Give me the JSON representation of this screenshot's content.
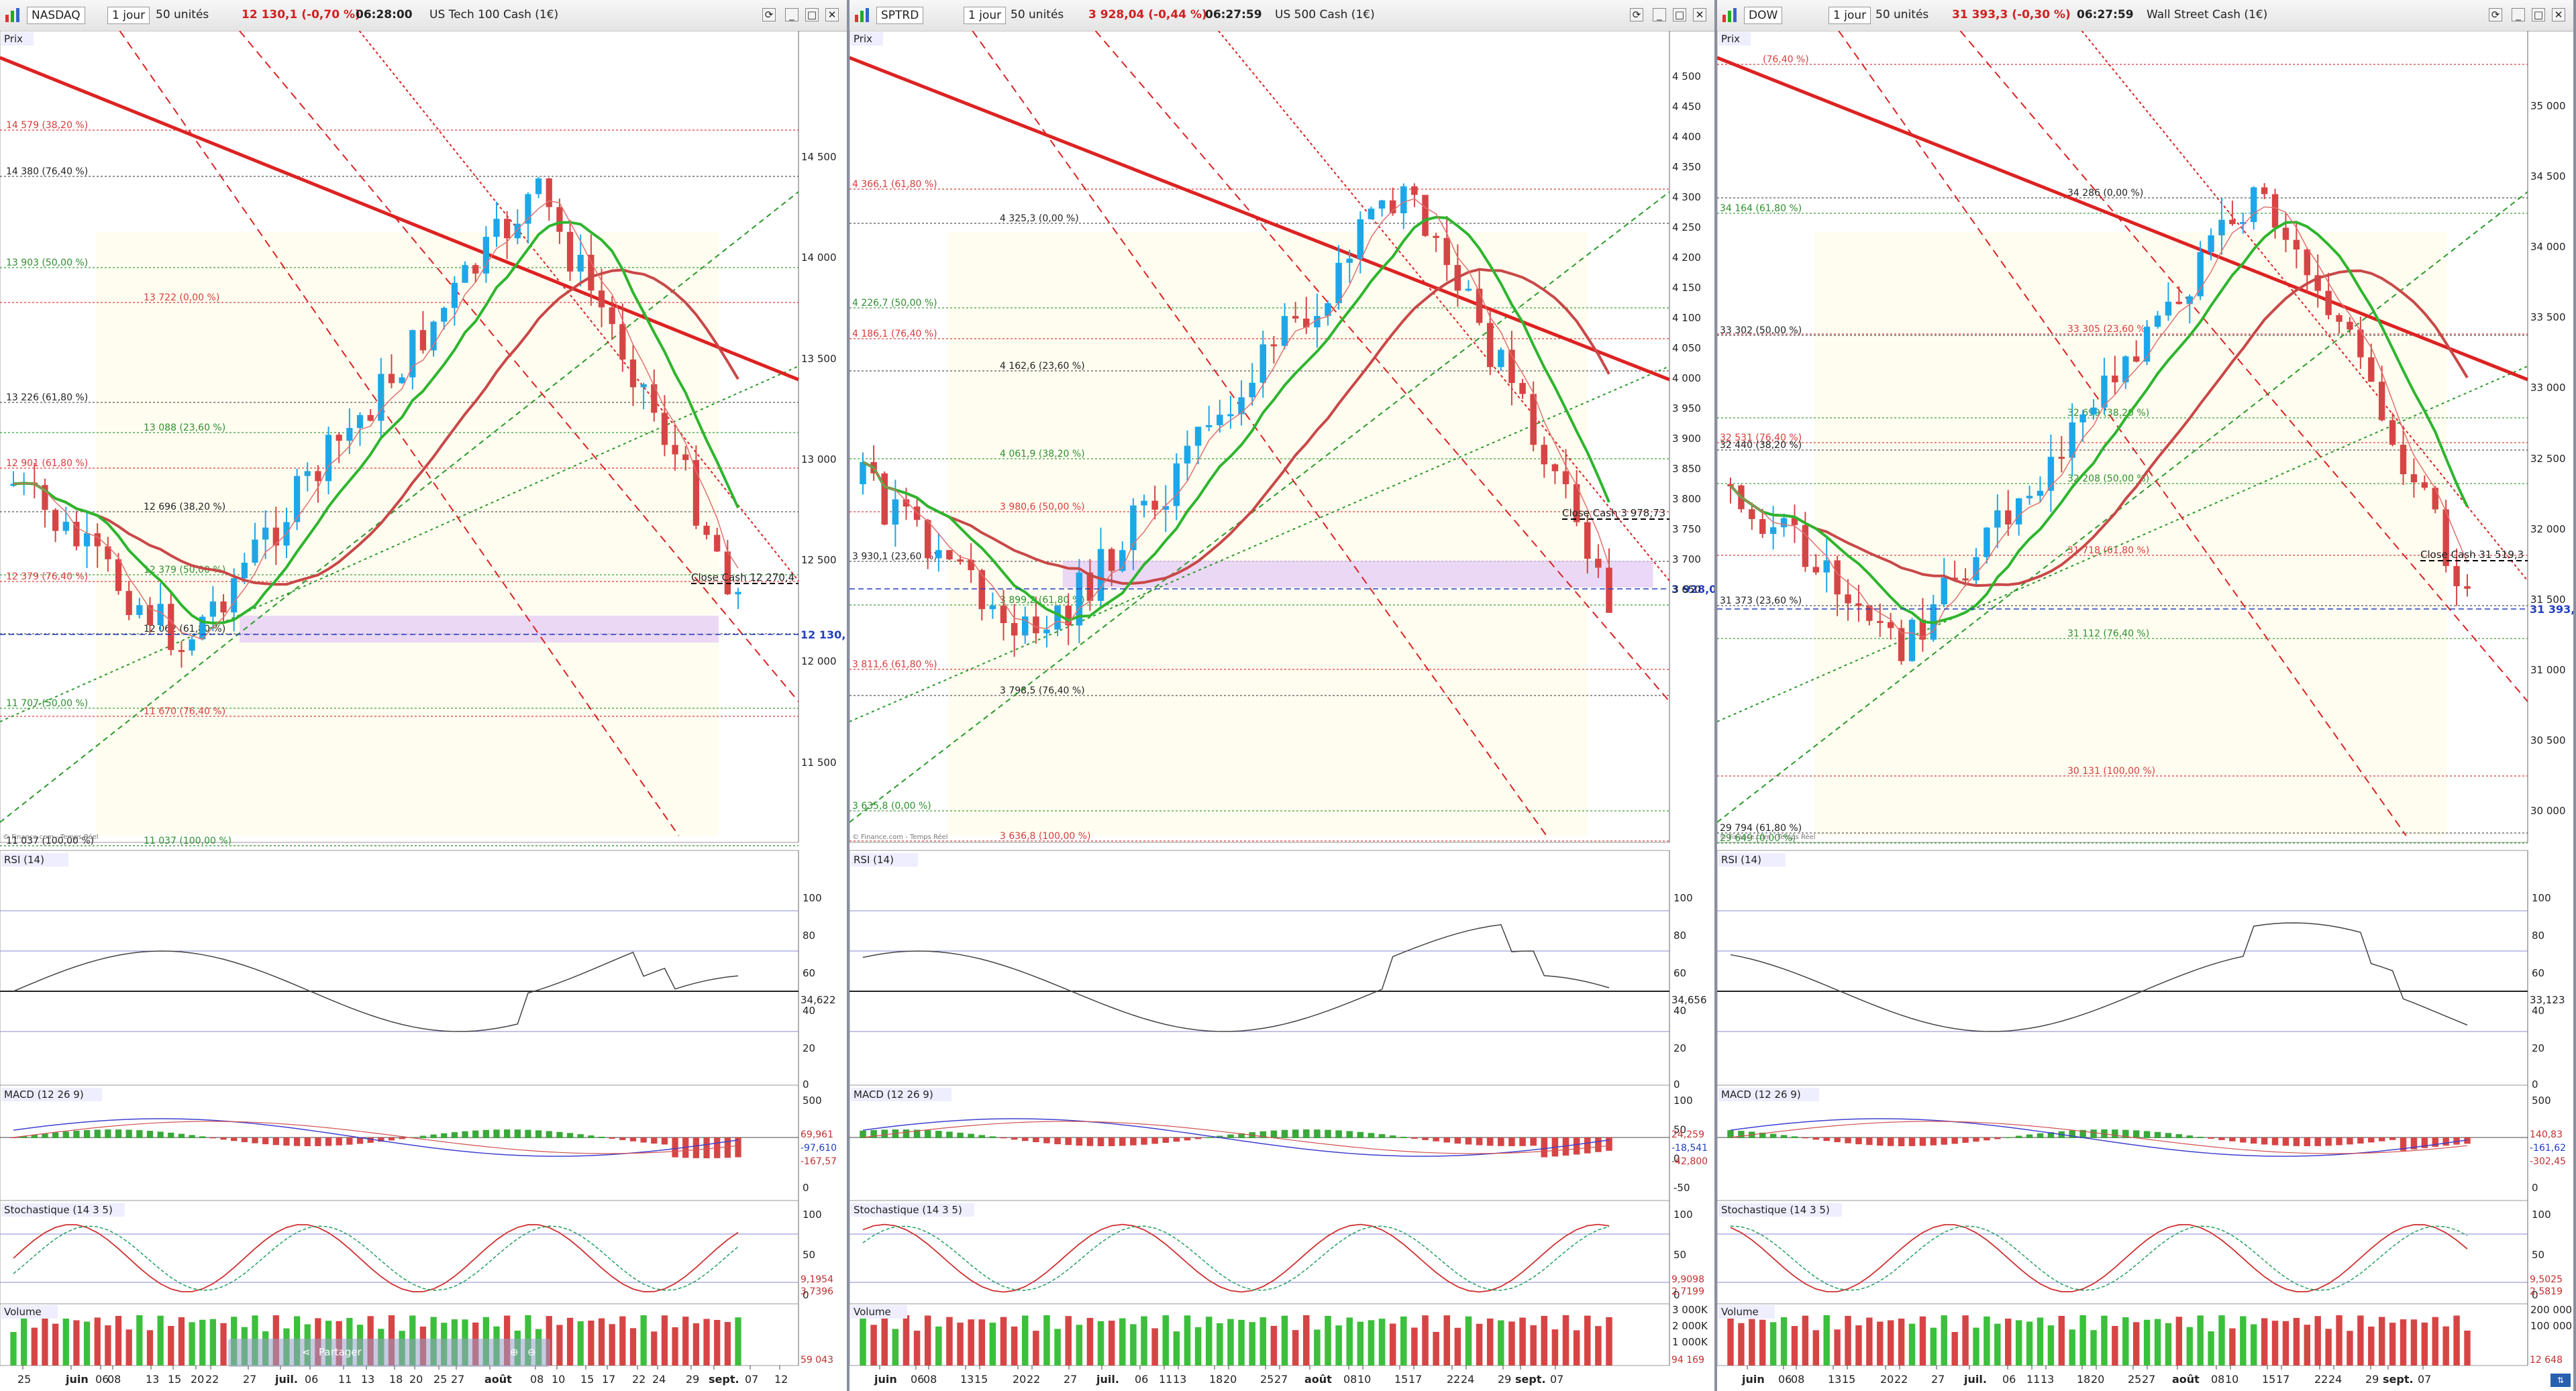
{
  "panels": [
    {
      "toolbar": {
        "symbol": "NASDAQ",
        "period": "1 jour",
        "units": "50 unités",
        "price": "12 130,1 (-0,70 %)",
        "time": "06:28:00",
        "name": "US Tech 100 Cash (1€)"
      },
      "price_label": "Prix",
      "y_ticks": [
        "14 500",
        "14 000",
        "13 500",
        "13 000",
        "12 500",
        "12 000",
        "11 500"
      ],
      "current_price": "12 130,1",
      "close_label": "Close Cash 12 270,4",
      "fib_levels": [
        "14 579 (38,20 %)",
        "14 380 (76,40 %)",
        "13 903 (50,00 %)",
        "13 722 (0,00 %)",
        "13 226 (61,80 %)",
        "13 088 (23,60 %)",
        "12 901 (61,80 %)",
        "12 696 (38,20 %)",
        "12 379 (50,00 %)",
        "12 379 (76,40 %)",
        "12 062 (61,80 %)",
        "11 707 (50,00 %)",
        "11 670 (76,40 %)",
        "11 037 (100,00 %)",
        "11 037 (100,00 %)"
      ],
      "rsi": {
        "label": "RSI (14)",
        "ticks": [
          "100",
          "80",
          "60",
          "40",
          "20",
          "0"
        ],
        "value": "34,622"
      },
      "macd": {
        "label": "MACD (12 26 9)",
        "ticks": [
          "500",
          "0"
        ],
        "values": [
          "69,961",
          "-97,610",
          "-167,57"
        ]
      },
      "stoch": {
        "label": "Stochastique (14 3 5)",
        "ticks": [
          "100",
          "50",
          "0"
        ],
        "values": [
          "9,1954",
          "3,7396"
        ]
      },
      "volume": {
        "label": "Volume",
        "value": "59 043"
      },
      "x_ticks": [
        "25",
        "juin",
        "06",
        "08",
        "13",
        "15",
        "20",
        "22",
        "27",
        "juil.",
        "06",
        "11",
        "13",
        "18",
        "20",
        "25",
        "27",
        "août",
        "08",
        "10",
        "15",
        "17",
        "22",
        "24",
        "29",
        "sept.",
        "07",
        "12"
      ],
      "watermark": "© Finance.com - Temps Réel",
      "scroll_bar": {
        "label": "Partager"
      }
    },
    {
      "toolbar": {
        "symbol": "SPTRD",
        "period": "1 jour",
        "units": "50 unités",
        "price": "3 928,04 (-0,44 %)",
        "time": "06:27:59",
        "name": "US 500 Cash (1€)"
      },
      "price_label": "Prix",
      "y_ticks": [
        "4 500",
        "4 450",
        "4 400",
        "4 350",
        "4 300",
        "4 250",
        "4 200",
        "4 150",
        "4 100",
        "4 050",
        "4 000",
        "3 950",
        "3 900",
        "3 850",
        "3 800",
        "3 750",
        "3 700",
        "3 650"
      ],
      "current_price": "3 928,04",
      "close_label": "Close Cash 3 978,73",
      "fib_levels": [
        "4 366,1 (61,80 %)",
        "4 325,3 (0,00 %)",
        "4 226,7 (50,00 %)",
        "4 186,1 (76,40 %)",
        "4 162,6 (23,60 %)",
        "4 061,9 (38,20 %)",
        "3 980,6 (50,00 %)",
        "3 930,1 (23,60 %)",
        "3 899,2 (61,80 %)",
        "3 811,6 (61,80 %)",
        "3 798,5 (76,40 %)",
        "3 635,8 (0,00 %)",
        "3 636,8 (100,00 %)"
      ],
      "rsi": {
        "label": "RSI (14)",
        "ticks": [
          "100",
          "80",
          "60",
          "40",
          "20",
          "0"
        ],
        "value": "34,656"
      },
      "macd": {
        "label": "MACD (12 26 9)",
        "ticks": [
          "100",
          "50",
          "0",
          "-50"
        ],
        "values": [
          "24,259",
          "-18,541",
          "-42,800"
        ]
      },
      "stoch": {
        "label": "Stochastique (14 3 5)",
        "ticks": [
          "100",
          "50",
          "0"
        ],
        "values": [
          "9,9098",
          "2,7199"
        ]
      },
      "volume": {
        "label": "Volume",
        "ticks": [
          "3 000K",
          "2 000K",
          "1 000K"
        ],
        "value": "94 169"
      },
      "x_ticks": [
        "juin",
        "06",
        "08",
        "13",
        "15",
        "20",
        "22",
        "27",
        "juil.",
        "06",
        "11",
        "13",
        "18",
        "20",
        "25",
        "27",
        "août",
        "08",
        "10",
        "15",
        "17",
        "22",
        "24",
        "29",
        "sept.",
        "07"
      ],
      "watermark": "© Finance.com - Temps Réel"
    },
    {
      "toolbar": {
        "symbol": "DOW",
        "period": "1 jour",
        "units": "50 unités",
        "price": "31 393,3 (-0,30 %)",
        "time": "06:27:59",
        "name": "Wall Street Cash (1€)"
      },
      "price_label": "Prix",
      "y_ticks": [
        "35 000",
        "34 500",
        "34 000",
        "33 500",
        "33 000",
        "32 500",
        "32 000",
        "31 500",
        "31 000",
        "30 500",
        "30 000"
      ],
      "current_price": "31 393,3",
      "close_label": "Close Cash 31 519,3",
      "fib_levels": [
        "(76,40 %)",
        "34 286 (0,00 %)",
        "34 164 (61,80 %)",
        "33 305 (23,60 %)",
        "33 302 (50,00 %)",
        "32 699 (38,20 %)",
        "32 531 (76,40 %)",
        "32 440 (38,20 %)",
        "32 208 (50,00 %)",
        "31 718 (61,80 %)",
        "31 373 (23,60 %)",
        "31 112 (76,40 %)",
        "30 131 (100,00 %)",
        "29 794 (61,80 %)",
        "29 649 (0,00 %)"
      ],
      "rsi": {
        "label": "RSI (14)",
        "ticks": [
          "100",
          "80",
          "60",
          "40",
          "20",
          "0"
        ],
        "value": "33,123"
      },
      "macd": {
        "label": "MACD (12 26 9)",
        "ticks": [
          "500",
          "0"
        ],
        "values": [
          "140,83",
          "-161,62",
          "-302,45"
        ]
      },
      "stoch": {
        "label": "Stochastique (14 3 5)",
        "ticks": [
          "100",
          "50",
          "0"
        ],
        "values": [
          "9,5025",
          "2,5819"
        ]
      },
      "volume": {
        "label": "Volume",
        "ticks": [
          "200 000",
          "100 000"
        ],
        "value": "12 648"
      },
      "x_ticks": [
        "juin",
        "06",
        "08",
        "13",
        "15",
        "20",
        "22",
        "27",
        "juil.",
        "06",
        "11",
        "13",
        "18",
        "20",
        "25",
        "27",
        "août",
        "08",
        "10",
        "15",
        "17",
        "22",
        "24",
        "29",
        "sept.",
        "07"
      ],
      "watermark": "© Finance.com - Temps Réel"
    }
  ],
  "colors": {
    "up": "#1ea7e8",
    "down": "#d64545",
    "ma_red": "#c94848",
    "ma_green": "#2eb52e",
    "fib_red": "#e03030",
    "fib_green": "#3aa83a",
    "highlight": "#d8b8f0"
  }
}
